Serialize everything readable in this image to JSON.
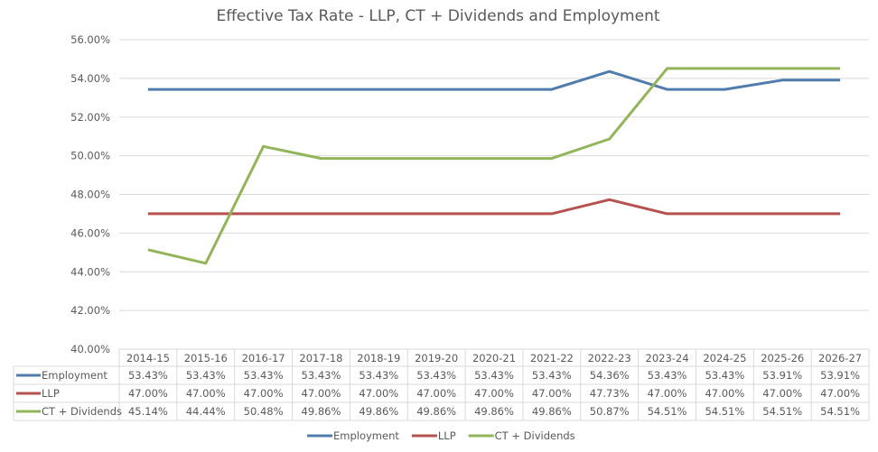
{
  "chart_data": {
    "type": "line",
    "title": "Effective Tax Rate - LLP, CT + Dividends and Employment",
    "xlabel": "",
    "ylabel": "",
    "ylim": [
      40,
      56
    ],
    "yticks": [
      "40.00%",
      "42.00%",
      "44.00%",
      "46.00%",
      "48.00%",
      "50.00%",
      "52.00%",
      "54.00%",
      "56.00%"
    ],
    "ytick_values": [
      40,
      42,
      44,
      46,
      48,
      50,
      52,
      54,
      56
    ],
    "grid": true,
    "legend_position": "bottom",
    "categories": [
      "2014-15",
      "2015-16",
      "2016-17",
      "2017-18",
      "2018-19",
      "2019-20",
      "2020-21",
      "2021-22",
      "2022-23",
      "2023-24",
      "2024-25",
      "2025-26",
      "2026-27"
    ],
    "series": [
      {
        "name": "Employment",
        "color": "#4f7cac",
        "values": [
          53.43,
          53.43,
          53.43,
          53.43,
          53.43,
          53.43,
          53.43,
          53.43,
          54.36,
          53.43,
          53.43,
          53.91,
          53.91
        ],
        "labels": [
          "53.43%",
          "53.43%",
          "53.43%",
          "53.43%",
          "53.43%",
          "53.43%",
          "53.43%",
          "53.43%",
          "54.36%",
          "53.43%",
          "53.43%",
          "53.91%",
          "53.91%"
        ]
      },
      {
        "name": "LLP",
        "color": "#b5514f",
        "values": [
          47.0,
          47.0,
          47.0,
          47.0,
          47.0,
          47.0,
          47.0,
          47.0,
          47.73,
          47.0,
          47.0,
          47.0,
          47.0
        ],
        "labels": [
          "47.00%",
          "47.00%",
          "47.00%",
          "47.00%",
          "47.00%",
          "47.00%",
          "47.00%",
          "47.00%",
          "47.73%",
          "47.00%",
          "47.00%",
          "47.00%",
          "47.00%"
        ]
      },
      {
        "name": "CT + Dividends",
        "color": "#93b55a",
        "values": [
          45.14,
          44.44,
          50.48,
          49.86,
          49.86,
          49.86,
          49.86,
          49.86,
          50.87,
          54.51,
          54.51,
          54.51,
          54.51
        ],
        "labels": [
          "45.14%",
          "44.44%",
          "50.48%",
          "49.86%",
          "49.86%",
          "49.86%",
          "49.86%",
          "49.86%",
          "50.87%",
          "54.51%",
          "54.51%",
          "54.51%",
          "54.51%"
        ]
      }
    ]
  }
}
